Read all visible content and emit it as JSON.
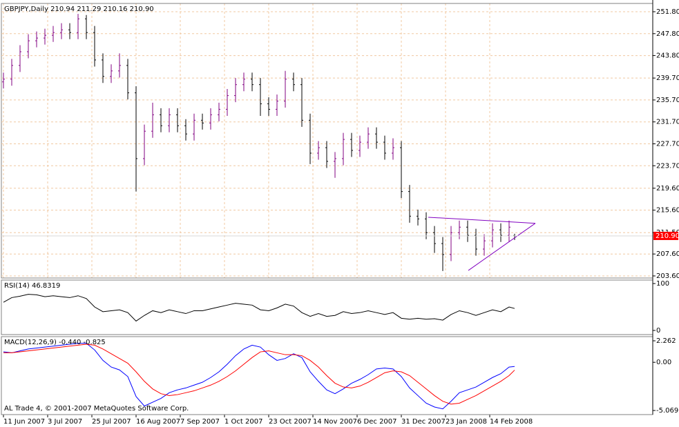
{
  "chart_data": [
    {
      "type": "ohlc",
      "title": "GBPJPY,Daily  210.94 211.29 210.16 210.90",
      "x": [
        0,
        3,
        6,
        9,
        12,
        15,
        18,
        21,
        24,
        27,
        30,
        33,
        36,
        39,
        42,
        45,
        48,
        51,
        54,
        57,
        60,
        63,
        66,
        69,
        72,
        75,
        78,
        81,
        84,
        87,
        90,
        93,
        96,
        99,
        102,
        105,
        108,
        111,
        114,
        117,
        120,
        123,
        126,
        129,
        132,
        135,
        138,
        141,
        144,
        147,
        150,
        153,
        156,
        159,
        162,
        165,
        168,
        171,
        174,
        177,
        180,
        183,
        185
      ],
      "open": [
        239,
        239.5,
        242,
        244.5,
        246.5,
        247,
        247.5,
        248,
        248.5,
        248,
        250.5,
        248,
        243,
        240,
        241,
        242,
        237,
        225,
        230,
        233,
        231,
        233,
        231,
        229.5,
        232,
        231.5,
        233,
        234,
        236.5,
        238.5,
        239.5,
        238.5,
        235,
        234,
        235.5,
        239.5,
        238.5,
        232,
        226,
        227,
        224.5,
        225,
        228.5,
        226.5,
        228,
        229.5,
        228,
        226,
        227,
        219,
        214.5,
        214,
        211.5,
        209.5,
        207.5,
        211.5,
        212.5,
        211,
        208.5,
        210,
        212,
        211,
        210.94
      ],
      "high": [
        240.7,
        243.2,
        245.7,
        247.7,
        248.2,
        248.7,
        249.2,
        249.7,
        249.7,
        251.4,
        251.2,
        249.2,
        244.2,
        242.2,
        244.2,
        243.2,
        238.2,
        231.2,
        235.2,
        234.2,
        234.2,
        234.2,
        232.2,
        233.2,
        233.2,
        234.2,
        235.2,
        237.7,
        239.7,
        240.7,
        240.7,
        239.7,
        236.2,
        236.7,
        241,
        240.7,
        239.7,
        233.2,
        228.2,
        228.2,
        226.2,
        229.7,
        229.7,
        229.2,
        230.7,
        230.7,
        229.2,
        228.7,
        228.2,
        220.2,
        215.7,
        215.2,
        212.7,
        210.7,
        212.7,
        213.7,
        213.7,
        212.2,
        211.2,
        213.2,
        213.2,
        213.7,
        211.29
      ],
      "low": [
        237.8,
        238.3,
        240.8,
        243.3,
        245.3,
        245.8,
        246.3,
        246.8,
        246.8,
        246.8,
        246.8,
        241.8,
        238.8,
        238.8,
        239.8,
        235.8,
        219,
        223.8,
        228.8,
        229.8,
        229.8,
        229.8,
        228.3,
        228.3,
        230.3,
        230.3,
        231.8,
        232.8,
        235.3,
        237.3,
        237.3,
        232.8,
        232.8,
        232.8,
        234.3,
        237.3,
        230.8,
        224,
        224.8,
        223.3,
        221.5,
        223.8,
        225.3,
        225.3,
        226.8,
        226.8,
        224.8,
        224.8,
        217.8,
        213.3,
        212.8,
        210.3,
        207.8,
        204.5,
        206.3,
        210.3,
        209.8,
        207.3,
        207.3,
        208.8,
        209.8,
        209.8,
        210.16
      ],
      "close": [
        239.5,
        242,
        244.5,
        246.5,
        247,
        247.5,
        248,
        248.5,
        248,
        250.5,
        248,
        243,
        240,
        241,
        242,
        237,
        225,
        230,
        233,
        231,
        233,
        231,
        229.5,
        232,
        231.5,
        233,
        234,
        236.5,
        238.5,
        239.5,
        238.5,
        235,
        234,
        235.5,
        239.5,
        238.5,
        232,
        226,
        227,
        224.5,
        225,
        228.5,
        226.5,
        228,
        229.5,
        228,
        226,
        227,
        219,
        214.5,
        214,
        211.5,
        209.5,
        207.5,
        211.5,
        212.5,
        211,
        208.5,
        210,
        212,
        211,
        212.5,
        210.9
      ],
      "up_color": "#800080",
      "down_color": "#000000",
      "xlim": [
        -0.75,
        235
      ],
      "xticks": [
        {
          "value": 0,
          "label": "11 Jun 2007"
        },
        {
          "value": 16,
          "label": "3 Jul 2007"
        },
        {
          "value": 32,
          "label": "25 Jul 2007"
        },
        {
          "value": 48,
          "label": "16 Aug 2007"
        },
        {
          "value": 64,
          "label": "7 Sep 2007"
        },
        {
          "value": 80,
          "label": "1 Oct 2007"
        },
        {
          "value": 96,
          "label": "23 Oct 2007"
        },
        {
          "value": 112,
          "label": "14 Nov 2007"
        },
        {
          "value": 128,
          "label": "6 Dec 2007"
        },
        {
          "value": 144,
          "label": "31 Dec 2007"
        },
        {
          "value": 160,
          "label": "23 Jan 2008"
        },
        {
          "value": 176,
          "label": "14 Feb 2008"
        }
      ],
      "ylim": [
        203.22,
        253.31
      ],
      "yticks": [
        {
          "value": 251.8,
          "label": "251.80"
        },
        {
          "value": 247.8,
          "label": "247.80"
        },
        {
          "value": 243.8,
          "label": "243.80"
        },
        {
          "value": 239.7,
          "label": "239.70"
        },
        {
          "value": 235.7,
          "label": "235.70"
        },
        {
          "value": 231.7,
          "label": "231.70"
        },
        {
          "value": 227.7,
          "label": "227.70"
        },
        {
          "value": 223.7,
          "label": "223.70"
        },
        {
          "value": 219.6,
          "label": "219.60"
        },
        {
          "value": 215.6,
          "label": "215.60"
        },
        {
          "value": 211.5,
          "label": "211.50"
        },
        {
          "value": 207.6,
          "label": "207.60"
        },
        {
          "value": 203.6,
          "label": "203.60"
        }
      ],
      "grid": true,
      "grid_color": "#f0c8a0",
      "price_label": {
        "value": 210.9,
        "label": "210.90"
      },
      "price_label_color": "#ff0000",
      "trendlines": [
        {
          "x": [
            153.75,
            192.5
          ],
          "y": [
            214.3,
            213.2
          ]
        },
        {
          "x": [
            168.25,
            192.5
          ],
          "y": [
            204.6,
            213.2
          ]
        }
      ],
      "trendline_color": "#8000c0"
    },
    {
      "type": "line",
      "title": "RSI(14) 46.8319",
      "values": [
        60,
        70,
        73,
        77,
        76,
        72,
        74,
        72,
        70,
        74,
        68,
        50,
        40,
        42,
        44,
        38,
        20,
        32,
        42,
        38,
        44,
        40,
        36,
        42,
        42,
        46,
        50,
        54,
        58,
        56,
        54,
        44,
        42,
        48,
        56,
        52,
        38,
        30,
        36,
        30,
        32,
        40,
        36,
        38,
        42,
        38,
        34,
        38,
        26,
        24,
        26,
        24,
        25,
        22,
        34,
        42,
        38,
        32,
        38,
        44,
        40,
        50,
        46.83
      ],
      "color": "#000000",
      "ylim": [
        -8.8,
        107.4
      ],
      "yticks": [
        100,
        0
      ]
    },
    {
      "type": "line",
      "title": "MACD(12,26,9) -0.440 -0.825",
      "series": [
        {
          "color": "#0000ff",
          "values": [
            1.1,
            1.0,
            1.2,
            1.4,
            1.5,
            1.6,
            1.7,
            1.8,
            1.9,
            2.0,
            2.0,
            1.3,
            0.2,
            -0.5,
            -0.8,
            -1.5,
            -3.6,
            -4.6,
            -4.2,
            -3.8,
            -3.2,
            -2.9,
            -2.7,
            -2.4,
            -2.1,
            -1.6,
            -1.0,
            -0.2,
            0.7,
            1.4,
            1.8,
            1.6,
            0.8,
            0.2,
            0.4,
            0.9,
            0.5,
            -1.0,
            -2.0,
            -2.9,
            -3.3,
            -2.8,
            -2.2,
            -1.8,
            -1.3,
            -0.7,
            -0.6,
            -0.7,
            -1.5,
            -2.7,
            -3.5,
            -4.3,
            -4.7,
            -4.9,
            -4.1,
            -3.2,
            -2.9,
            -2.6,
            -2.1,
            -1.6,
            -1.2,
            -0.5,
            -0.44
          ]
        },
        {
          "color": "#ff0000",
          "values": [
            1.0,
            1.0,
            1.1,
            1.2,
            1.3,
            1.4,
            1.5,
            1.6,
            1.7,
            1.8,
            1.9,
            1.8,
            1.4,
            0.9,
            0.4,
            -0.1,
            -1.0,
            -2.0,
            -2.8,
            -3.3,
            -3.5,
            -3.4,
            -3.2,
            -3.0,
            -2.7,
            -2.4,
            -2.0,
            -1.5,
            -0.9,
            -0.2,
            0.5,
            1.1,
            1.2,
            1.0,
            0.8,
            0.8,
            0.7,
            0.2,
            -0.5,
            -1.4,
            -2.2,
            -2.6,
            -2.7,
            -2.5,
            -2.1,
            -1.6,
            -1.1,
            -0.9,
            -1.0,
            -1.4,
            -2.1,
            -2.8,
            -3.5,
            -4.1,
            -4.4,
            -4.3,
            -3.9,
            -3.5,
            -3.0,
            -2.5,
            -2.0,
            -1.4,
            -0.825
          ]
        }
      ],
      "ylim": [
        -5.5,
        2.7
      ],
      "yticks": [
        {
          "value": 2.262,
          "label": "2.262"
        },
        {
          "value": 0,
          "label": "0.00"
        },
        {
          "value": -5.069,
          "label": "-5.069"
        }
      ],
      "annotation": "AL Trade 4, © 2001-2007 MetaQuotes Software Corp."
    }
  ]
}
